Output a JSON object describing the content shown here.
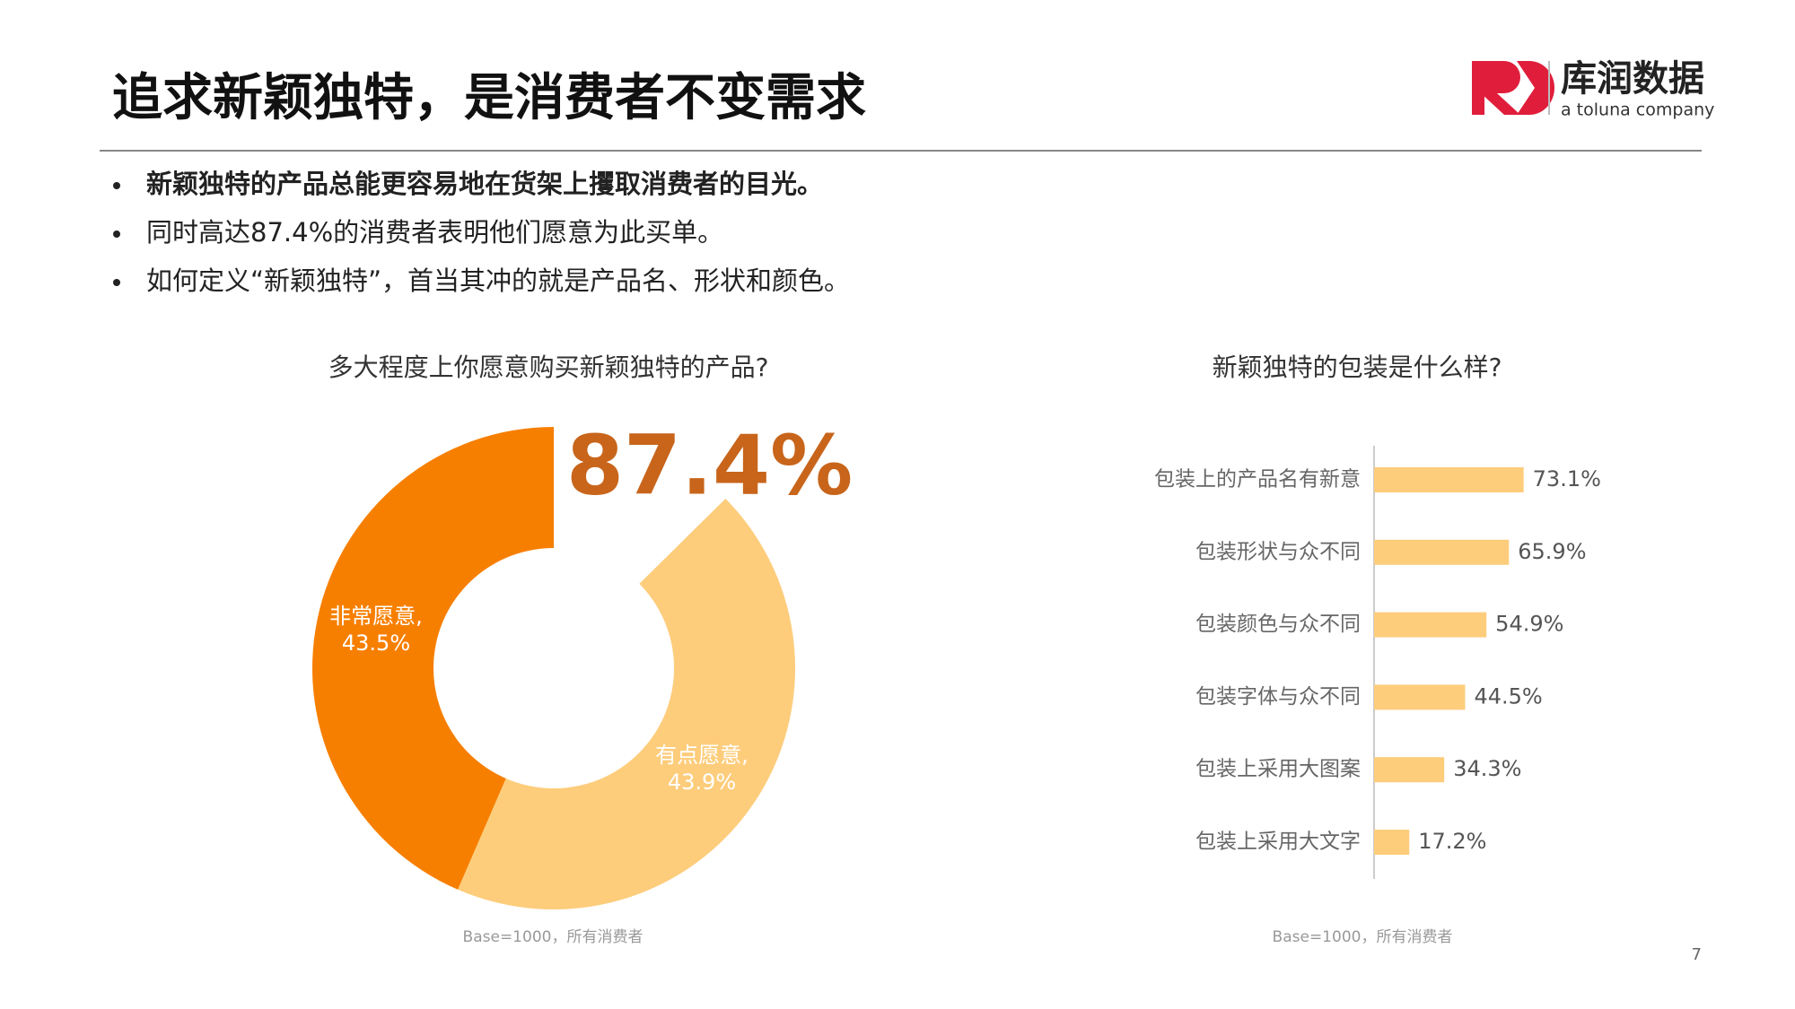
{
  "header": {
    "title": "追求新颖独特，是消费者不变需求",
    "logo_name": "库润数据",
    "logo_tagline": "a toluna company"
  },
  "bullets": [
    "新颖独特的产品总能更容易地在货架上攫取消费者的目光。",
    "同时高达87.4%的消费者表明他们愿意为此买单。",
    "如何定义“新颖独特”，首当其冲的就是产品名、形状和颜色。"
  ],
  "page_number": "7",
  "chart_data": [
    {
      "type": "donut",
      "title": "多大程度上你愿意购买新颖独特的产品?",
      "annotation": "87.4%",
      "categories": [
        "非常愿意,",
        "有点愿意,"
      ],
      "values": [
        43.5,
        43.9
      ],
      "value_labels": [
        "43.5%",
        "43.9%"
      ],
      "colors": [
        "#f77f00",
        "#fdcd7c"
      ],
      "note": "Base=1000，所有消费者"
    },
    {
      "type": "hbar",
      "title": "新颖独特的包装是什么样?",
      "categories": [
        "包装上的产品名有新意",
        "包装形状与众不同",
        "包装颜色与众不同",
        "包装字体与众不同",
        "包装上采用大图案",
        "包装上采用大文字"
      ],
      "values": [
        73.1,
        65.9,
        54.9,
        44.5,
        34.3,
        17.2
      ],
      "value_labels": [
        "73.1%",
        "65.9%",
        "54.9%",
        "44.5%",
        "34.3%",
        "17.2%"
      ],
      "color": "#fdcd7c",
      "xlim": [
        0,
        100
      ],
      "note": "Base=1000，所有消费者"
    }
  ]
}
